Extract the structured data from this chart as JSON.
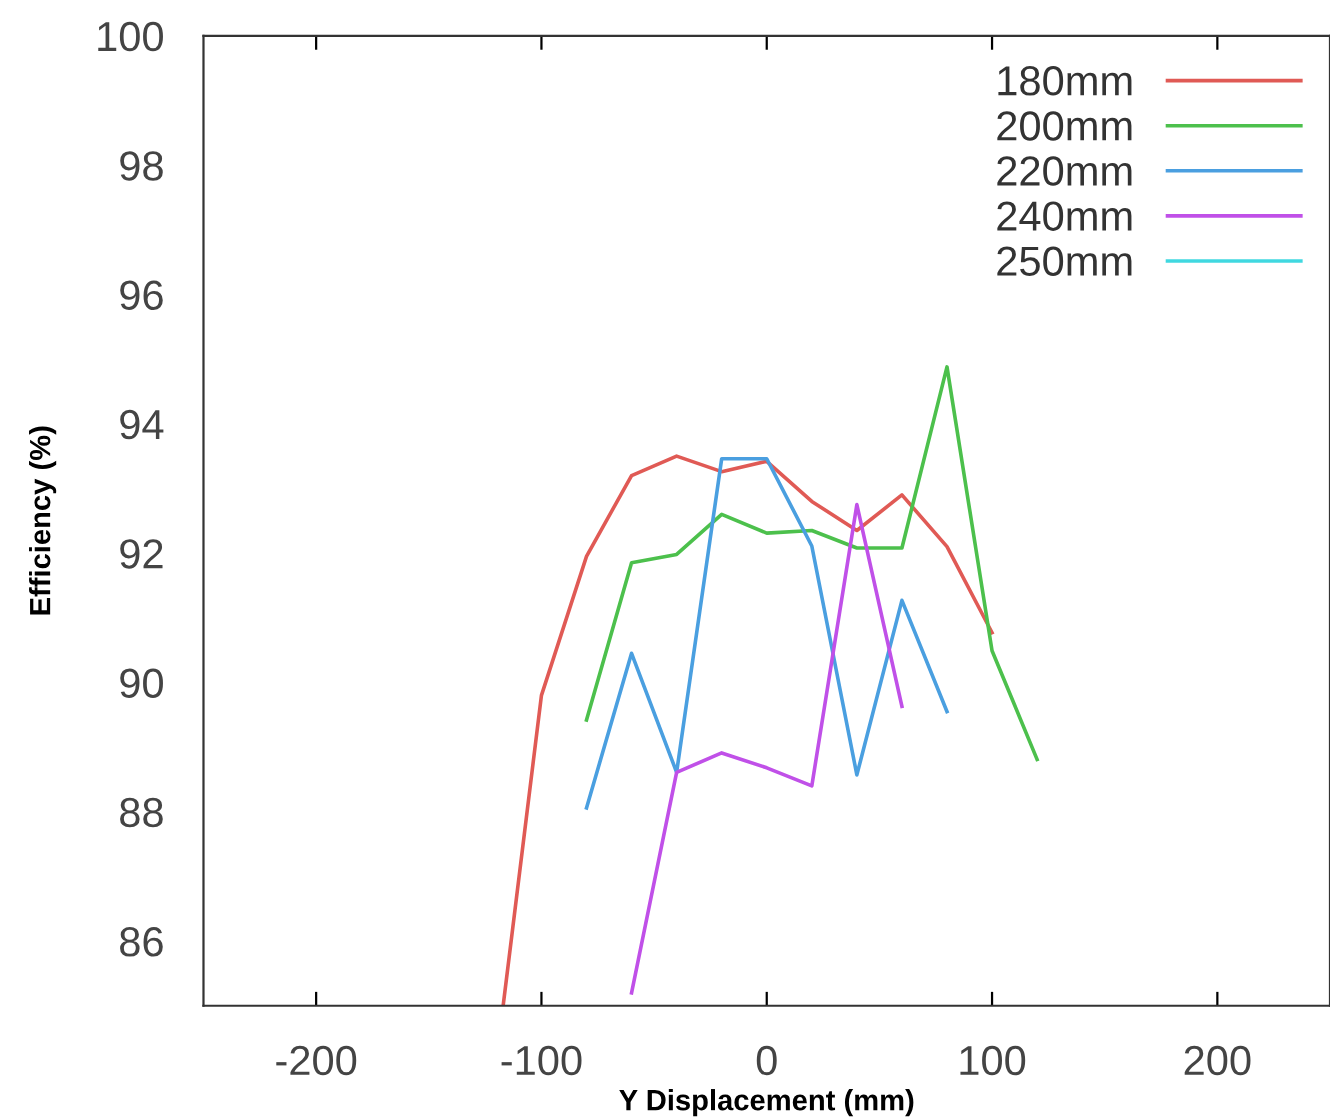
{
  "chart_data": {
    "type": "line",
    "xlabel": "Y Displacement (mm)",
    "ylabel": "Efficiency (%)",
    "xlim": [
      -250,
      250
    ],
    "xticks": [
      -200,
      -100,
      0,
      100,
      200
    ],
    "ylim": [
      85,
      100
    ],
    "yticks": [
      86,
      88,
      90,
      92,
      94,
      96,
      98,
      100
    ],
    "grid": false,
    "legend": "top right",
    "marker": "none",
    "line_style": "solid",
    "series": [
      {
        "name": "180mm",
        "color": "#e05a55",
        "x": [
          -117,
          -100,
          -80,
          -60,
          -40,
          -20,
          0,
          20,
          40,
          60,
          80,
          100
        ],
        "values": [
          85,
          89.8,
          91.95,
          93.2,
          93.5,
          93.26,
          93.42,
          92.8,
          92.35,
          92.9,
          92.1,
          90.77
        ]
      },
      {
        "name": "200mm",
        "color": "#4cc04c",
        "x": [
          -80,
          -60,
          -40,
          -20,
          0,
          20,
          40,
          60,
          80,
          100,
          120
        ],
        "values": [
          89.42,
          91.85,
          91.98,
          92.6,
          92.31,
          92.35,
          92.08,
          92.08,
          94.88,
          90.49,
          88.81
        ]
      },
      {
        "name": "220mm",
        "color": "#4a9fe0",
        "x": [
          -80,
          -60,
          -40,
          -20,
          0,
          20,
          40,
          60,
          80
        ],
        "values": [
          88.06,
          90.45,
          88.61,
          93.46,
          93.46,
          92.11,
          88.57,
          91.27,
          89.55
        ]
      },
      {
        "name": "240mm",
        "color": "#c050e8",
        "x": [
          -60,
          -40,
          -20,
          0,
          20,
          40,
          60
        ],
        "values": [
          85.2,
          88.61,
          88.91,
          88.68,
          88.4,
          92.75,
          89.63
        ]
      },
      {
        "name": "250mm",
        "color": "#40d8e0"
      }
    ]
  }
}
